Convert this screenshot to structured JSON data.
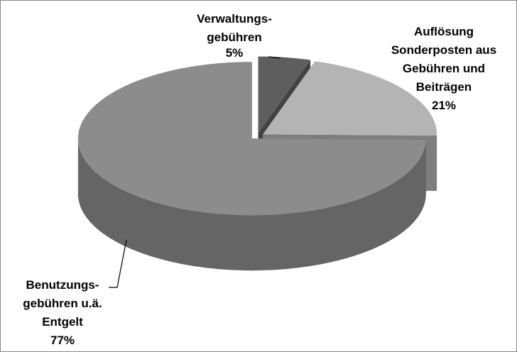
{
  "chart_data": {
    "type": "pie",
    "categories": [
      "Verwaltungs-\ngebühren",
      "Auflösung\nSonderposten aus\nGebühren und\nBeiträgen",
      "Benutzungs-\ngebühren u.ä.\nEntgelt"
    ],
    "values": [
      5,
      21,
      77
    ],
    "value_labels": [
      "5%",
      "21%",
      "77%"
    ],
    "colors": [
      "#5e5e5e",
      "#b4b4b4",
      "#8c8c8c"
    ]
  }
}
